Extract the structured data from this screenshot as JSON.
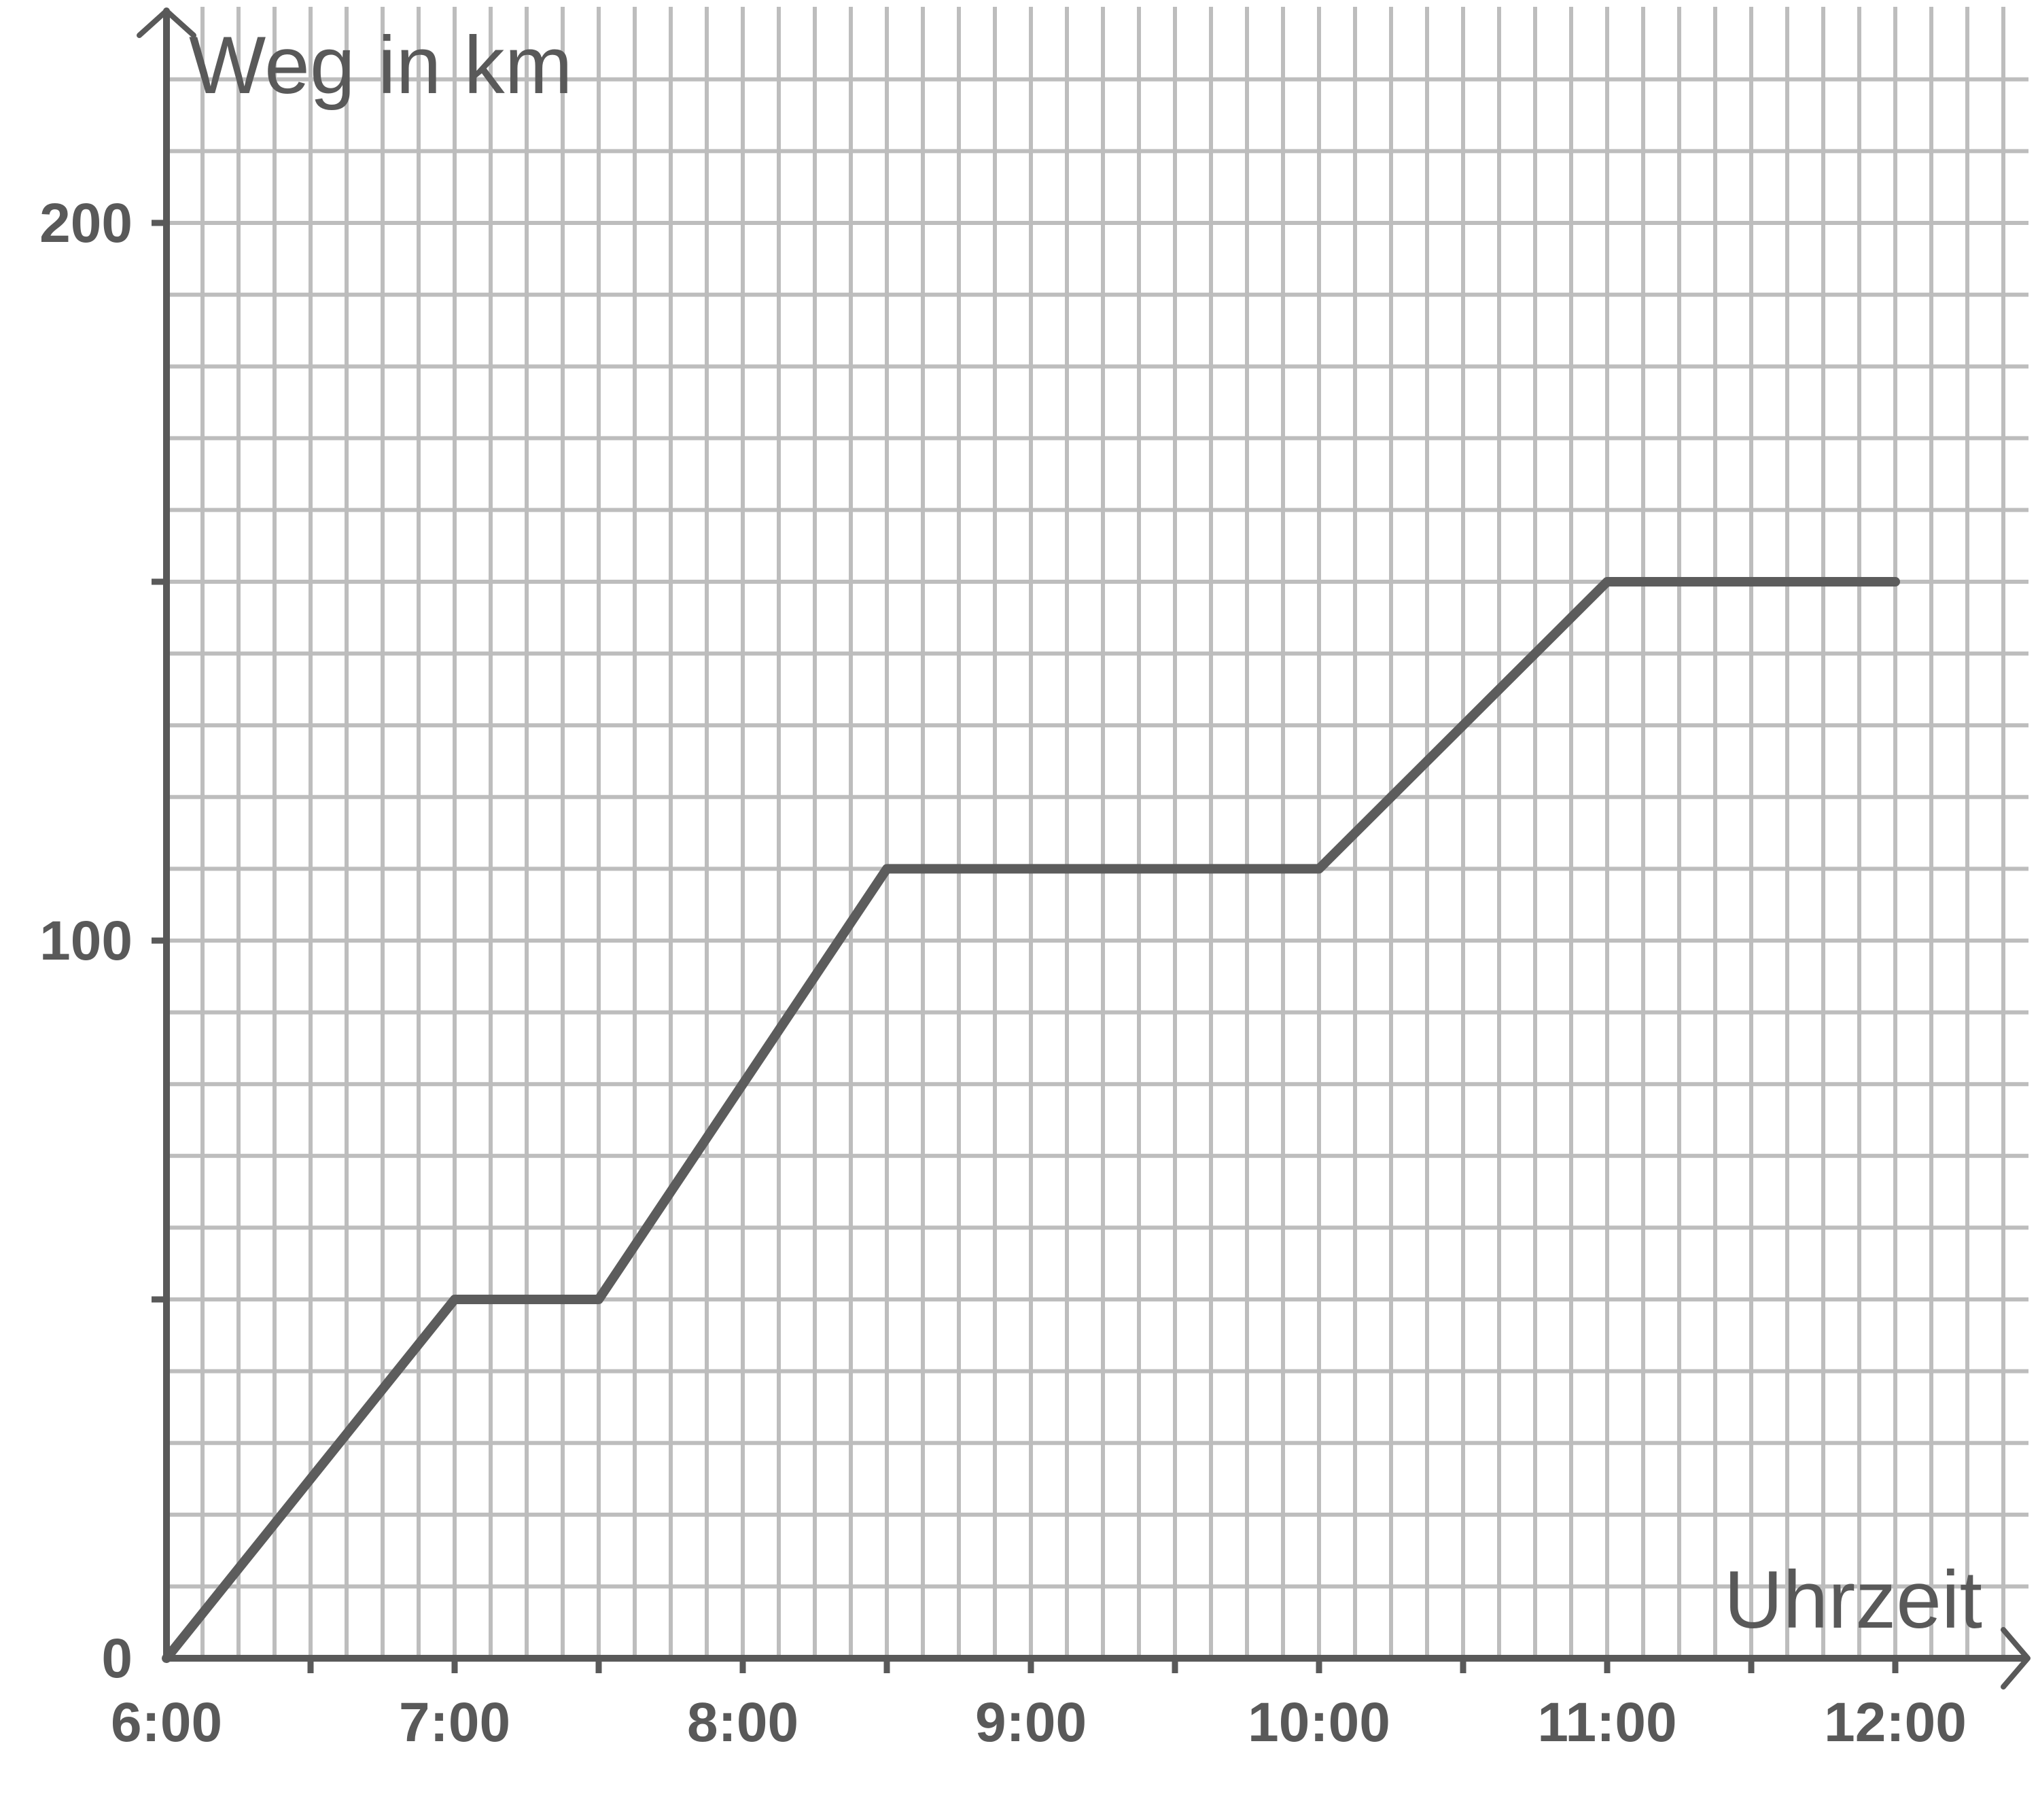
{
  "chart_data": {
    "type": "line",
    "ylabel": "Weg in km",
    "xlabel": "Uhrzeit",
    "x_ticks": [
      "6:00",
      "7:00",
      "8:00",
      "9:00",
      "10:00",
      "11:00",
      "12:00"
    ],
    "y_ticks": [
      {
        "value": 0,
        "label": "0"
      },
      {
        "value": 100,
        "label": "100"
      },
      {
        "value": 200,
        "label": "200"
      }
    ],
    "xlim_hours": [
      6,
      12.5
    ],
    "ylim": [
      0,
      230
    ],
    "grid": true,
    "series": [
      {
        "points": [
          {
            "t": "6:00",
            "y": 0
          },
          {
            "t": "7:00",
            "y": 50
          },
          {
            "t": "7:30",
            "y": 50
          },
          {
            "t": "8:30",
            "y": 110
          },
          {
            "t": "10:00",
            "y": 110
          },
          {
            "t": "11:00",
            "y": 150
          },
          {
            "t": "12:00",
            "y": 150
          }
        ]
      }
    ],
    "colors": {
      "line": "#5c5c5c",
      "axis": "#595959",
      "grid": "#bdbdbd"
    }
  }
}
